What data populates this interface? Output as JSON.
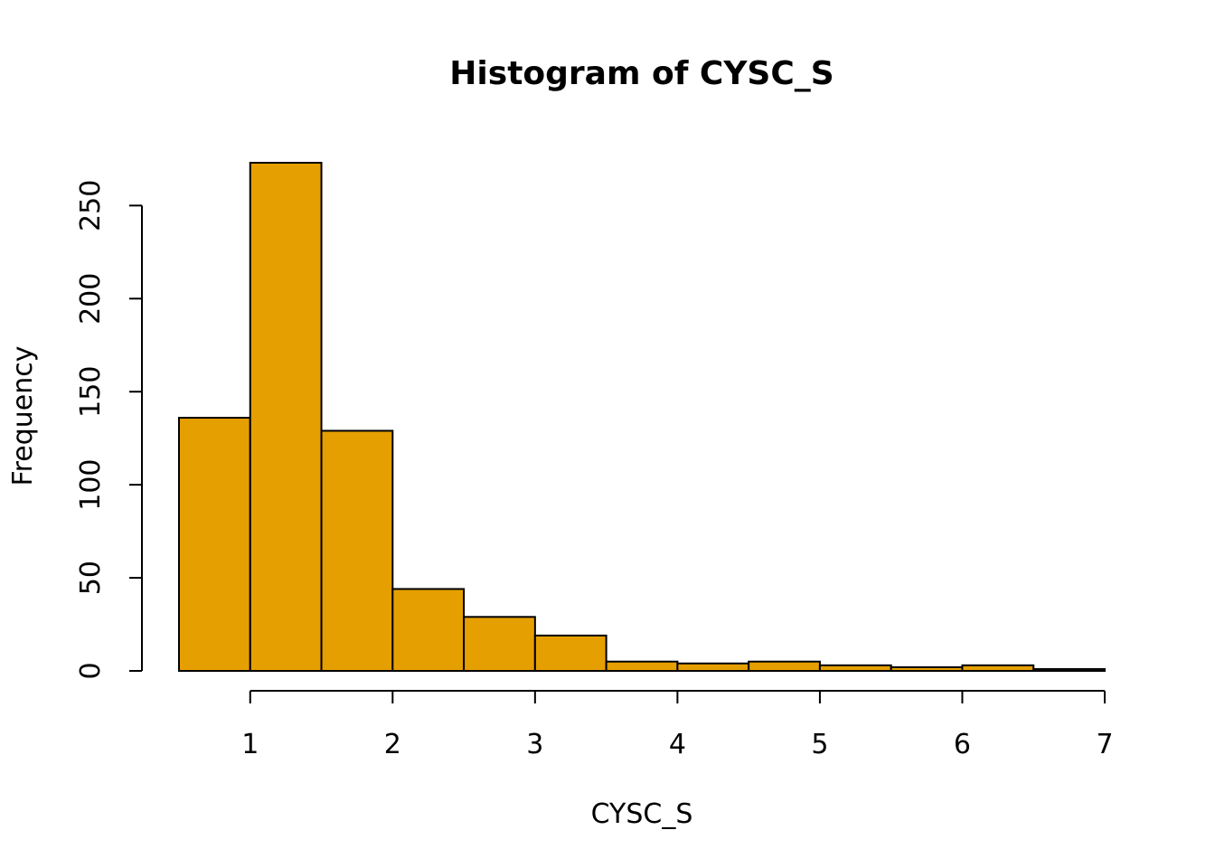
{
  "chart_data": {
    "type": "bar",
    "title": "Histogram of CYSC_S",
    "xlabel": "CYSC_S",
    "ylabel": "Frequency",
    "bar_color": "#E69F00",
    "bin_edges": [
      0.5,
      1.0,
      1.5,
      2.0,
      2.5,
      3.0,
      3.5,
      4.0,
      4.5,
      5.0,
      5.5,
      6.0,
      6.5,
      7.0
    ],
    "values": [
      136,
      273,
      129,
      44,
      29,
      19,
      5,
      4,
      5,
      3,
      2,
      3,
      1
    ],
    "xlim": [
      0.5,
      7.0
    ],
    "ylim": [
      0,
      273
    ],
    "x_ticks": [
      1,
      2,
      3,
      4,
      5,
      6,
      7
    ],
    "x_tick_labels": [
      "1",
      "2",
      "3",
      "4",
      "5",
      "6",
      "7"
    ],
    "y_ticks": [
      0,
      50,
      100,
      150,
      200,
      250
    ],
    "y_tick_labels": [
      "0",
      "50",
      "100",
      "150",
      "200",
      "250"
    ],
    "grid": false,
    "legend": "none"
  }
}
